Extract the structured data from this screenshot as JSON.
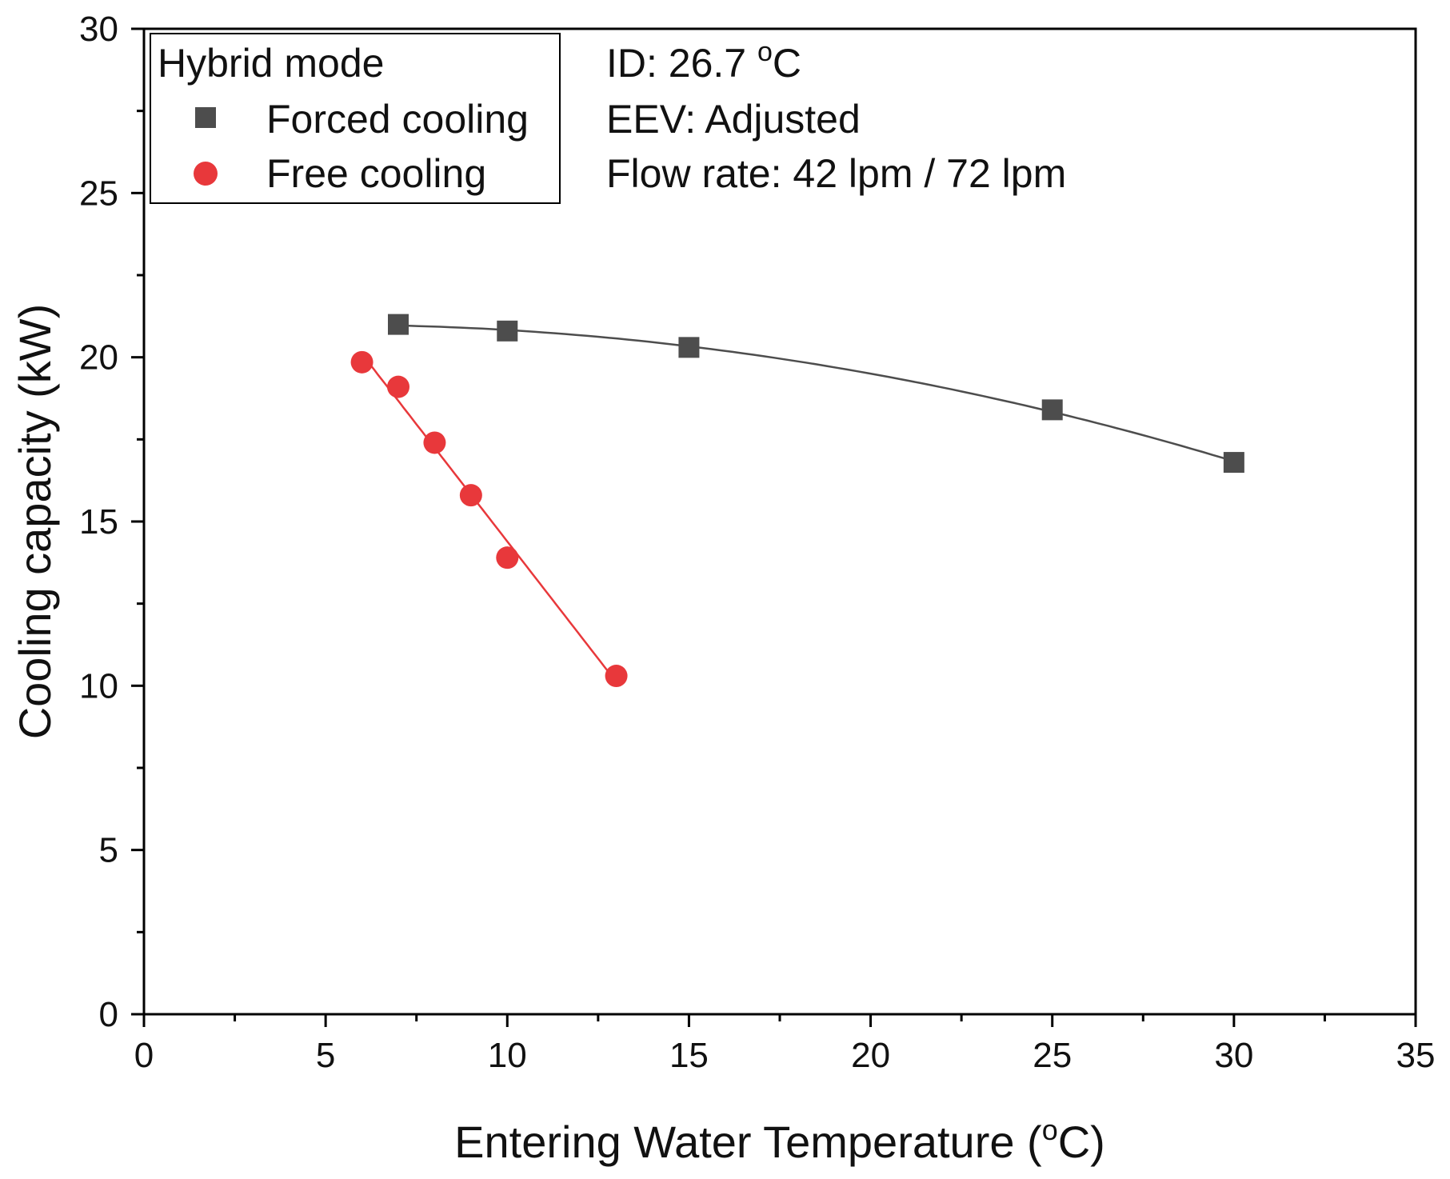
{
  "chart_data": {
    "type": "scatter",
    "title": "",
    "xlabel": "Entering Water Temperature (",
    "xlabel_sup": "o",
    "xlabel_tail": "C)",
    "ylabel": "Cooling capacity (kW)",
    "xlim": [
      0,
      35
    ],
    "ylim": [
      0,
      30
    ],
    "x_ticks": [
      0,
      5,
      10,
      15,
      20,
      25,
      30,
      35
    ],
    "y_ticks": [
      0,
      5,
      10,
      15,
      20,
      25,
      30
    ],
    "x_minor_ticks": [
      2.5,
      7.5,
      12.5,
      17.5,
      22.5,
      27.5,
      32.5
    ],
    "y_minor_ticks": [
      2.5,
      7.5,
      12.5,
      17.5,
      22.5,
      27.5
    ],
    "grid": false,
    "legend": {
      "title": "Hybrid mode",
      "placement": "top-left"
    },
    "series": [
      {
        "name": "Forced cooling",
        "marker": "square",
        "color": "#4d4d4d",
        "points": [
          [
            7,
            21.0
          ],
          [
            10,
            20.8
          ],
          [
            15,
            20.3
          ],
          [
            25,
            18.4
          ],
          [
            30,
            16.8
          ]
        ],
        "fit": "quadratic",
        "fit_range": [
          7,
          30
        ]
      },
      {
        "name": "Free cooling",
        "marker": "circle",
        "color": "#e8383b",
        "points": [
          [
            6,
            19.85
          ],
          [
            7,
            19.1
          ],
          [
            8,
            17.4
          ],
          [
            9,
            15.8
          ],
          [
            10,
            13.9
          ],
          [
            13,
            10.3
          ]
        ],
        "fit": "linear",
        "fit_range": [
          6,
          13
        ]
      }
    ],
    "annotations": [
      {
        "text": "ID: 26.7 ",
        "sup": "o",
        "tail": "C"
      },
      {
        "text": "EEV: Adjusted"
      },
      {
        "text": "Flow rate: 42 lpm / 72 lpm"
      }
    ]
  }
}
